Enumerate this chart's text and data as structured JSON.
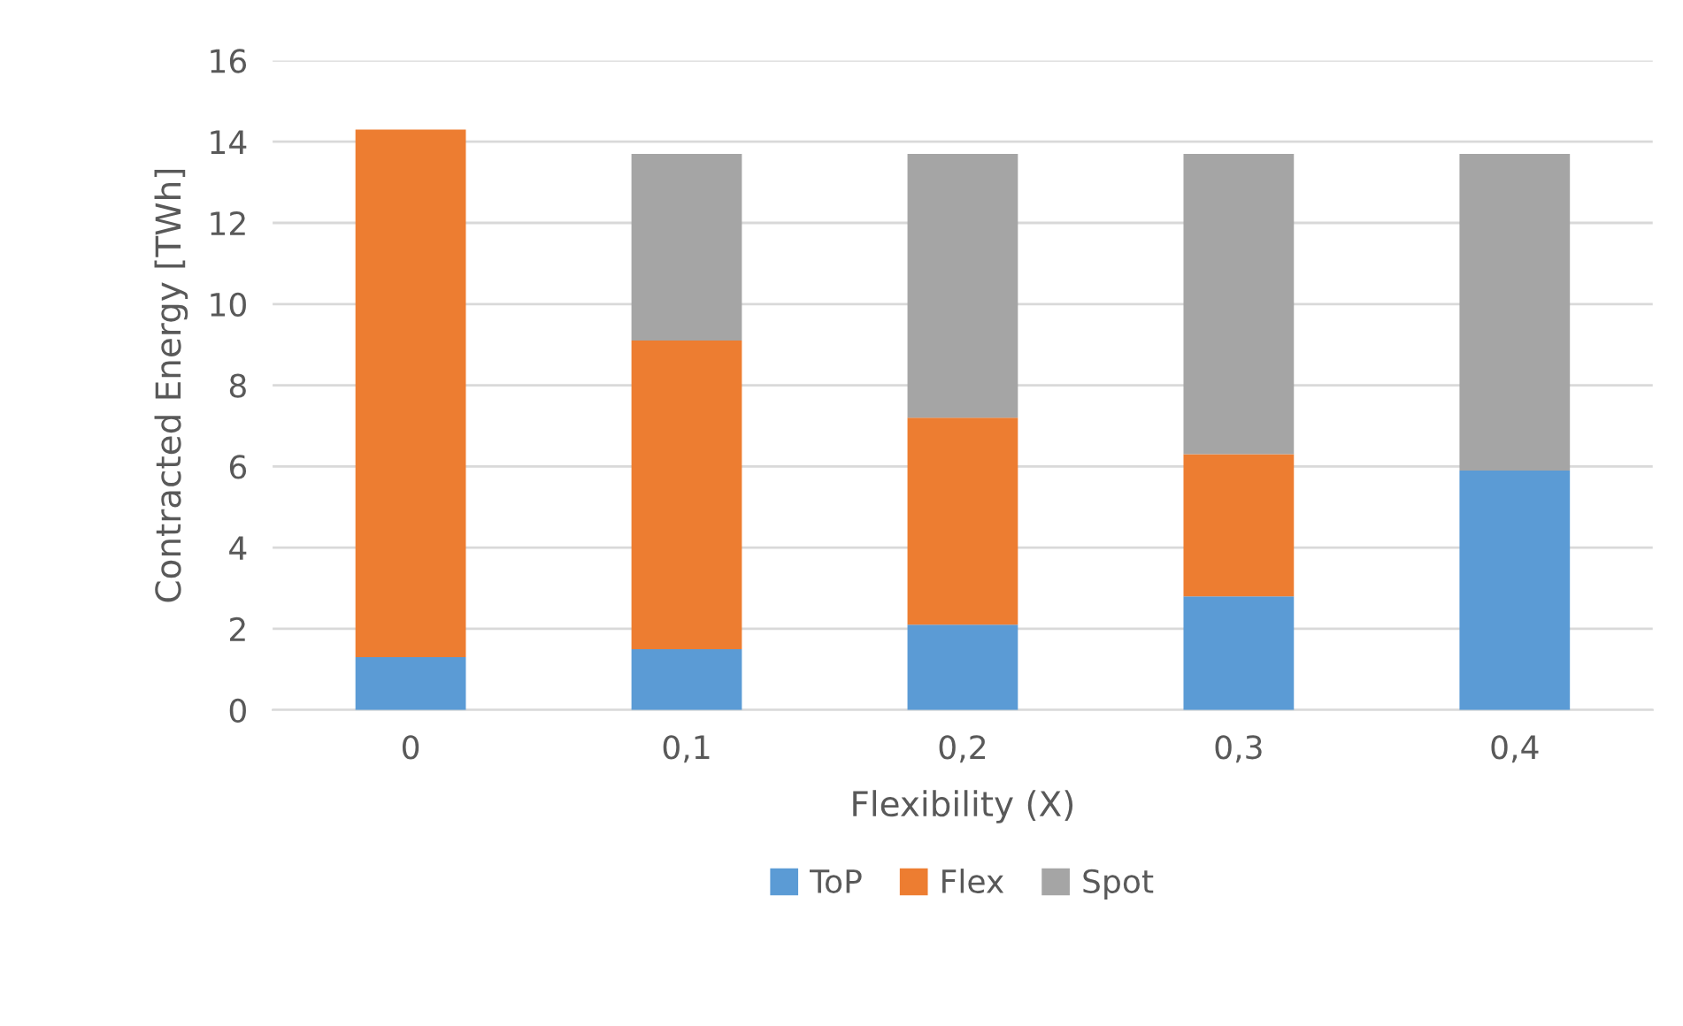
{
  "chart_data": {
    "type": "bar",
    "stacked": true,
    "xlabel": "Flexibility (X)",
    "ylabel": "Contracted Energy [TWh]",
    "categories": [
      "0",
      "0,1",
      "0,2",
      "0,3",
      "0,4"
    ],
    "series": [
      {
        "name": "ToP",
        "color": "#5b9bd5",
        "values": [
          1.3,
          1.5,
          2.1,
          2.8,
          5.9
        ]
      },
      {
        "name": "Flex",
        "color": "#ed7d31",
        "values": [
          13.0,
          7.6,
          5.1,
          3.5,
          0
        ]
      },
      {
        "name": "Spot",
        "color": "#a5a5a5",
        "values": [
          0,
          4.6,
          6.5,
          7.4,
          7.8
        ]
      }
    ],
    "ylim": [
      0,
      16
    ],
    "yticks": [
      0,
      2,
      4,
      6,
      8,
      10,
      12,
      14,
      16
    ],
    "grid": "y",
    "legend": "bottom"
  }
}
